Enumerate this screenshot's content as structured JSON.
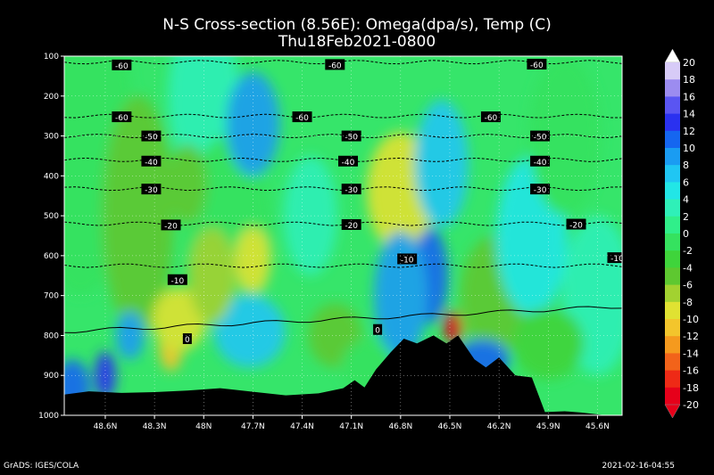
{
  "chart_data": {
    "type": "heatmap",
    "title": "N-S Cross-section (8.56E): Omega(dpa/s), Temp (C)",
    "subtitle": "Thu18Feb2021-0800",
    "x_tick_labels": [
      "48.6N",
      "48.3N",
      "48N",
      "47.7N",
      "47.4N",
      "47.1N",
      "46.8N",
      "46.5N",
      "46.2N",
      "45.9N",
      "45.6N"
    ],
    "y_tick_labels": [
      "100",
      "200",
      "300",
      "400",
      "500",
      "600",
      "700",
      "800",
      "900",
      "1000"
    ],
    "x_range": [
      48.85,
      45.45
    ],
    "y_range_hpa": [
      100,
      1000
    ],
    "grid": true,
    "colorbar": {
      "values": [
        20,
        18,
        16,
        14,
        12,
        10,
        8,
        6,
        4,
        2,
        0,
        -2,
        -4,
        -6,
        -8,
        -10,
        -12,
        -14,
        -16,
        -18,
        -20
      ],
      "colors": [
        "#ffffff",
        "#d7cbf7",
        "#9c8cf0",
        "#5a55f2",
        "#2a31f0",
        "#1566f0",
        "#1a9cf2",
        "#20c6f3",
        "#22e6e6",
        "#2ff0b8",
        "#30ef8a",
        "#35e25f",
        "#3fd43b",
        "#5ec830",
        "#a2d230",
        "#e0e232",
        "#f3c52c",
        "#f59a1e",
        "#f2631a",
        "#ee2a16",
        "#e6001a"
      ],
      "position": "right"
    },
    "isotherms": [
      {
        "label": "-60",
        "p": 115
      },
      {
        "label": "-60",
        "p": 250
      },
      {
        "label": "-50",
        "p": 300
      },
      {
        "label": "-40",
        "p": 360
      },
      {
        "label": "-30",
        "p": 432
      },
      {
        "label": "-20",
        "p": 520
      },
      {
        "label": "-10",
        "p": 625
      },
      {
        "label": "0",
        "p": 790
      }
    ],
    "isotherm_labels": [
      {
        "text": "-60",
        "lat": 48.5,
        "p": 122
      },
      {
        "text": "-60",
        "lat": 47.2,
        "p": 121
      },
      {
        "text": "-60",
        "lat": 45.97,
        "p": 120
      },
      {
        "text": "-60",
        "lat": 48.5,
        "p": 252
      },
      {
        "text": "-60",
        "lat": 47.4,
        "p": 252
      },
      {
        "text": "-60",
        "lat": 46.25,
        "p": 252
      },
      {
        "text": "-50",
        "lat": 48.32,
        "p": 300
      },
      {
        "text": "-50",
        "lat": 47.1,
        "p": 300
      },
      {
        "text": "-50",
        "lat": 45.95,
        "p": 300
      },
      {
        "text": "-40",
        "lat": 48.32,
        "p": 363
      },
      {
        "text": "-40",
        "lat": 47.12,
        "p": 363
      },
      {
        "text": "-40",
        "lat": 45.95,
        "p": 363
      },
      {
        "text": "-30",
        "lat": 48.32,
        "p": 433
      },
      {
        "text": "-30",
        "lat": 47.1,
        "p": 433
      },
      {
        "text": "-30",
        "lat": 45.95,
        "p": 433
      },
      {
        "text": "-20",
        "lat": 48.2,
        "p": 523
      },
      {
        "text": "-20",
        "lat": 47.1,
        "p": 522
      },
      {
        "text": "-20",
        "lat": 45.73,
        "p": 521
      },
      {
        "text": "-10",
        "lat": 48.16,
        "p": 660
      },
      {
        "text": "-10",
        "lat": 46.76,
        "p": 608
      },
      {
        "text": "-10",
        "lat": 45.48,
        "p": 605
      },
      {
        "text": "0",
        "lat": 48.1,
        "p": 808
      },
      {
        "text": "0",
        "lat": 46.94,
        "p": 785
      }
    ],
    "terrain_surface_hpa": [
      [
        48.85,
        948
      ],
      [
        48.7,
        940
      ],
      [
        48.5,
        944
      ],
      [
        48.3,
        942
      ],
      [
        48.1,
        938
      ],
      [
        47.9,
        932
      ],
      [
        47.7,
        941
      ],
      [
        47.5,
        950
      ],
      [
        47.3,
        945
      ],
      [
        47.15,
        932
      ],
      [
        47.08,
        912
      ],
      [
        47.02,
        930
      ],
      [
        46.95,
        885
      ],
      [
        46.86,
        842
      ],
      [
        46.78,
        808
      ],
      [
        46.7,
        820
      ],
      [
        46.6,
        800
      ],
      [
        46.52,
        820
      ],
      [
        46.45,
        800
      ],
      [
        46.35,
        860
      ],
      [
        46.28,
        880
      ],
      [
        46.2,
        855
      ],
      [
        46.1,
        900
      ],
      [
        46.0,
        905
      ],
      [
        45.92,
        992
      ],
      [
        45.8,
        990
      ],
      [
        45.7,
        993
      ],
      [
        45.55,
        1000
      ],
      [
        45.45,
        1003
      ]
    ]
  },
  "footer": {
    "left": "GrADS: IGES/COLA",
    "right": "2021-02-16-04:55"
  }
}
